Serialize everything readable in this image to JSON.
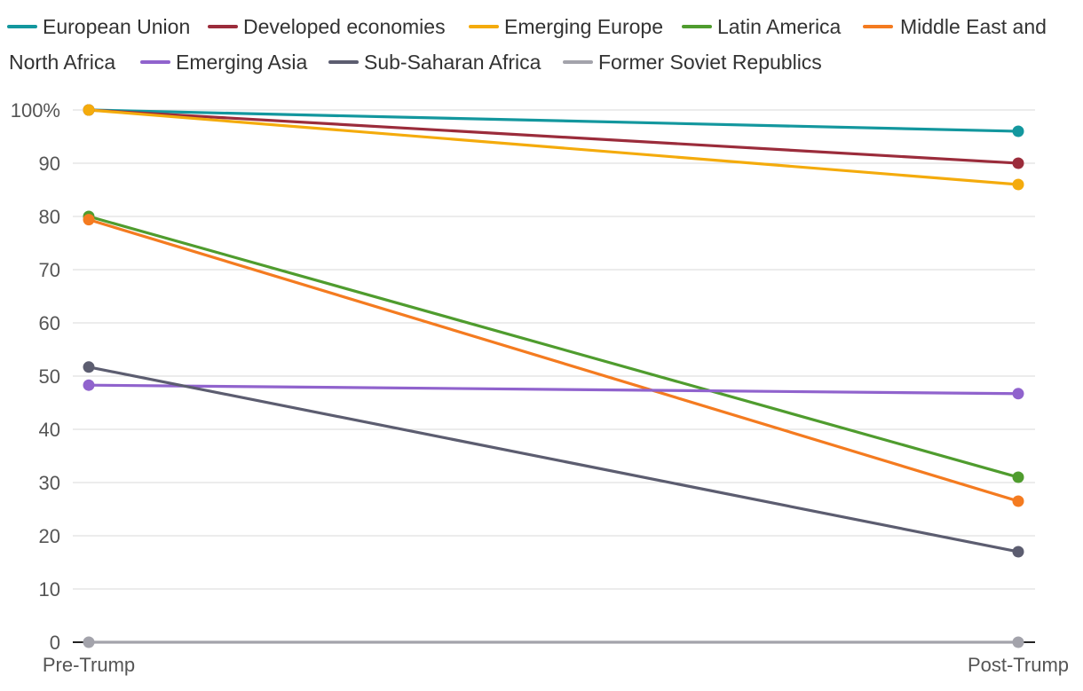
{
  "chart_data": {
    "type": "line",
    "title": "",
    "xlabel": "",
    "ylabel": "",
    "x": [
      "Pre-Trump",
      "Post-Trump"
    ],
    "ylim": [
      0,
      100
    ],
    "y_ticks": [
      0,
      10,
      20,
      30,
      40,
      50,
      60,
      70,
      80,
      90,
      100
    ],
    "y_tick_labels": [
      "0",
      "10",
      "20",
      "30",
      "40",
      "50",
      "60",
      "70",
      "80",
      "90",
      "100%"
    ],
    "grid": true,
    "legend_position": "top",
    "series": [
      {
        "name": "European Union",
        "color": "#13979e",
        "values": [
          100,
          96
        ]
      },
      {
        "name": "Developed economies",
        "color": "#9b2c3b",
        "values": [
          100,
          90
        ]
      },
      {
        "name": "Emerging Europe",
        "color": "#f4ab0c",
        "values": [
          100,
          86
        ]
      },
      {
        "name": "Latin America",
        "color": "#4f9c2e",
        "values": [
          80,
          31
        ]
      },
      {
        "name": "Middle East and North Africa",
        "color": "#f47b20",
        "values": [
          79.4,
          26.5
        ]
      },
      {
        "name": "Emerging Asia",
        "color": "#9063cd",
        "values": [
          48.3,
          46.7
        ]
      },
      {
        "name": "Sub-Saharan Africa",
        "color": "#5c5d70",
        "values": [
          51.7,
          17
        ]
      },
      {
        "name": "Former Soviet Republics",
        "color": "#a3a3ab",
        "values": [
          0,
          0
        ]
      }
    ]
  }
}
